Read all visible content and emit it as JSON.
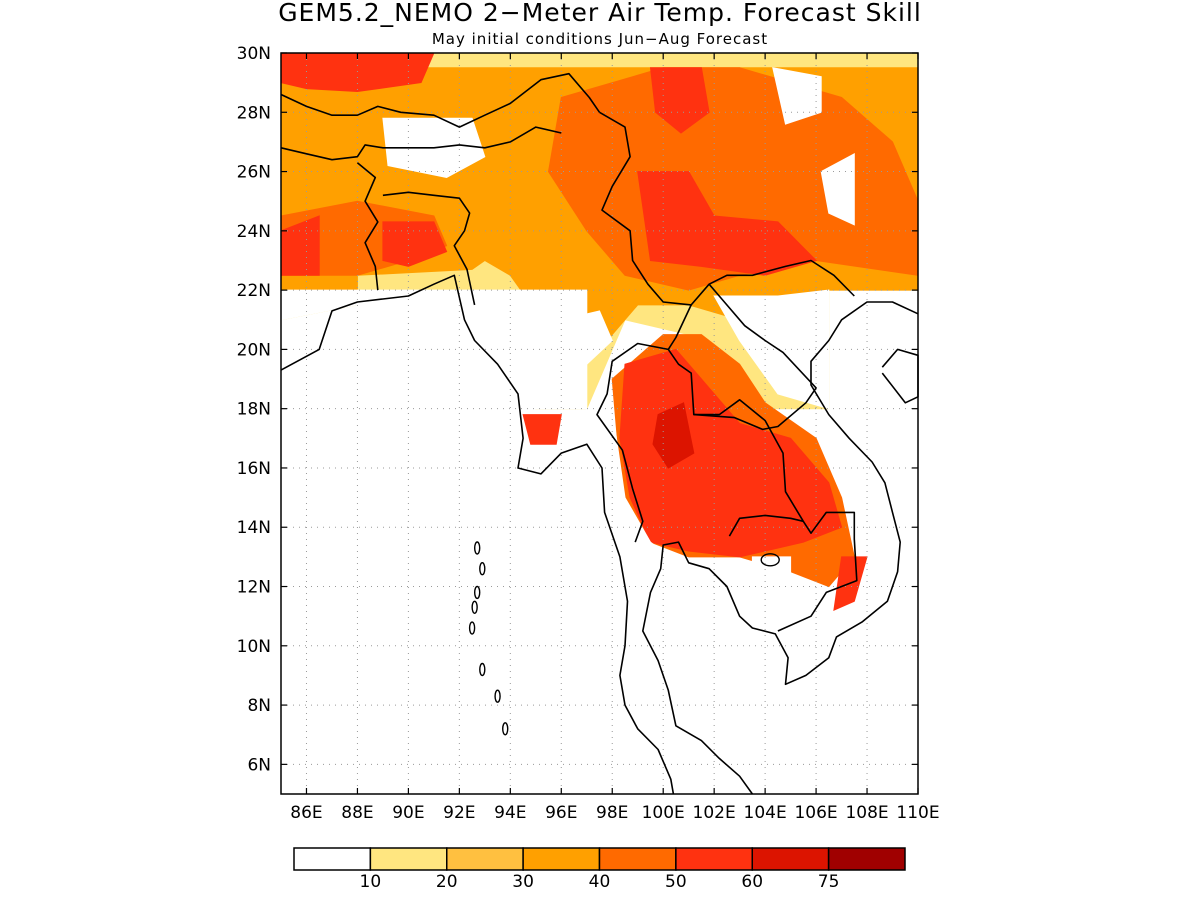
{
  "map": {
    "title": "GEM5.2_NEMO 2−Meter Air Temp. Forecast Skill",
    "subtitle": "May initial conditions  Jun−Aug Forecast",
    "lon_labels": [
      "86E",
      "88E",
      "90E",
      "92E",
      "94E",
      "96E",
      "98E",
      "100E",
      "102E",
      "104E",
      "106E",
      "108E",
      "110E"
    ],
    "lat_labels": [
      "30N",
      "28N",
      "26N",
      "24N",
      "22N",
      "20N",
      "18N",
      "16N",
      "14N",
      "12N",
      "10N",
      "8N",
      "6N"
    ],
    "extent": {
      "lon_min": 85,
      "lon_max": 110,
      "lat_min": 5,
      "lat_max": 30
    },
    "colorbar": {
      "labels": [
        "10",
        "20",
        "30",
        "40",
        "50",
        "60",
        "75"
      ],
      "colors": [
        "#ffffff",
        "#ffe680",
        "#ffc040",
        "#ffa000",
        "#ff6a00",
        "#ff3210",
        "#dc1400",
        "#a00000"
      ]
    },
    "colors": {
      "coast": "#000000",
      "grid": "#9a9a9a",
      "frame": "#000000"
    },
    "skill_regions": [
      {
        "name": "ne-india-bangladesh",
        "level": 30
      },
      {
        "name": "bangladesh-core",
        "level": 50
      },
      {
        "name": "yunnan-south-china",
        "level": 40
      },
      {
        "name": "yunnan-core",
        "level": 50
      },
      {
        "name": "thailand-laos-cambodia",
        "level": 50
      },
      {
        "name": "south-vietnam",
        "level": 50
      },
      {
        "name": "himalaya-strip",
        "level": 50
      }
    ]
  }
}
